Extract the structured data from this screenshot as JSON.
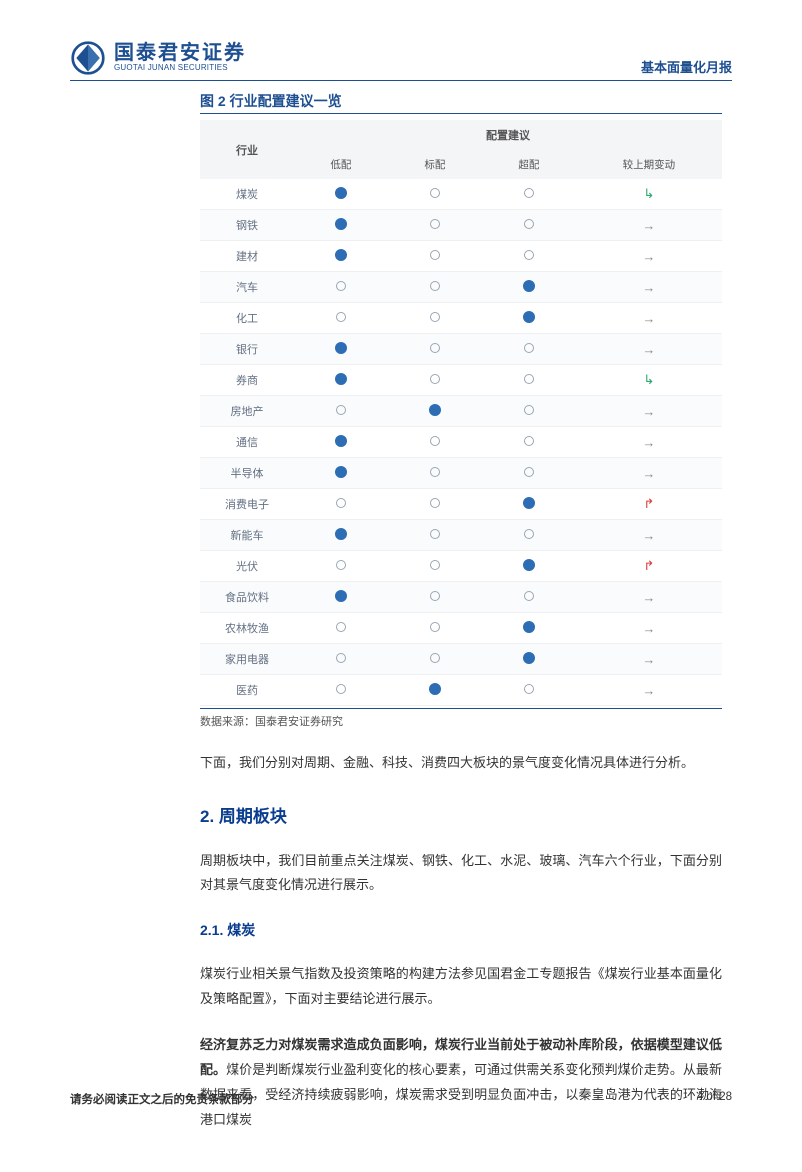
{
  "header": {
    "logo_cn": "国泰君安证券",
    "logo_en": "GUOTAI JUNAN SECURITIES",
    "right_label": "基本面量化月报"
  },
  "figure": {
    "title": "图 2 行业配置建议一览",
    "col_industry": "行业",
    "col_group": "配置建议",
    "col_low": "低配",
    "col_std": "标配",
    "col_high": "超配",
    "col_change": "较上期变动",
    "source": "数据来源：国泰君安证券研究",
    "rows": [
      {
        "name": "煤炭",
        "low": "filled",
        "std": "empty",
        "high": "empty",
        "change": "down"
      },
      {
        "name": "钢铁",
        "low": "filled",
        "std": "empty",
        "high": "empty",
        "change": "flat"
      },
      {
        "name": "建材",
        "low": "filled",
        "std": "empty",
        "high": "empty",
        "change": "flat"
      },
      {
        "name": "汽车",
        "low": "empty",
        "std": "empty",
        "high": "filled",
        "change": "flat"
      },
      {
        "name": "化工",
        "low": "empty",
        "std": "empty",
        "high": "filled",
        "change": "flat"
      },
      {
        "name": "银行",
        "low": "filled",
        "std": "empty",
        "high": "empty",
        "change": "flat"
      },
      {
        "name": "券商",
        "low": "filled",
        "std": "empty",
        "high": "empty",
        "change": "down"
      },
      {
        "name": "房地产",
        "low": "empty",
        "std": "filled",
        "high": "empty",
        "change": "flat"
      },
      {
        "name": "通信",
        "low": "filled",
        "std": "empty",
        "high": "empty",
        "change": "flat"
      },
      {
        "name": "半导体",
        "low": "filled",
        "std": "empty",
        "high": "empty",
        "change": "flat"
      },
      {
        "name": "消费电子",
        "low": "empty",
        "std": "empty",
        "high": "filled",
        "change": "up"
      },
      {
        "name": "新能车",
        "low": "filled",
        "std": "empty",
        "high": "empty",
        "change": "flat"
      },
      {
        "name": "光伏",
        "low": "empty",
        "std": "empty",
        "high": "filled",
        "change": "up"
      },
      {
        "name": "食品饮料",
        "low": "filled",
        "std": "empty",
        "high": "empty",
        "change": "flat"
      },
      {
        "name": "农林牧渔",
        "low": "empty",
        "std": "empty",
        "high": "filled",
        "change": "flat"
      },
      {
        "name": "家用电器",
        "low": "empty",
        "std": "empty",
        "high": "filled",
        "change": "flat"
      },
      {
        "name": "医药",
        "low": "empty",
        "std": "filled",
        "high": "empty",
        "change": "flat"
      }
    ]
  },
  "body": {
    "p1": "下面，我们分别对周期、金融、科技、消费四大板块的景气度变化情况具体进行分析。",
    "h2": "2.  周期板块",
    "p2": "周期板块中，我们目前重点关注煤炭、钢铁、化工、水泥、玻璃、汽车六个行业，下面分别对其景气度变化情况进行展示。",
    "h3": "2.1.  煤炭",
    "p3": "煤炭行业相关景气指数及投资策略的构建方法参见国君金工专题报告《煤炭行业基本面量化及策略配置》，下面对主要结论进行展示。",
    "p4a": "经济复苏乏力对煤炭需求造成负面影响，煤炭行业当前处于被动补库阶段，依据模型建议低配。",
    "p4b": "煤价是判断煤炭行业盈利变化的核心要素，可通过供需关系变化预判煤价走势。从最新数据来看，受经济持续疲弱影响，煤炭需求受到明显负面冲击，以秦皇岛港为代表的环渤海港口煤炭"
  },
  "footer": {
    "left": "请务必阅读正文之后的免责条款部分",
    "right": "4 of 28"
  },
  "colors": {
    "brand": "#1d4f91",
    "heading": "#0a3d8f",
    "dot_fill": "#2d6db3",
    "dot_stroke": "#9aa6b2",
    "row_alt_bg": "#fafbfc",
    "header_bg": "#f3f5f7",
    "arrow_flat": "#888888",
    "arrow_down": "#2aa86f",
    "arrow_up": "#d83a3a",
    "text": "#333333"
  }
}
